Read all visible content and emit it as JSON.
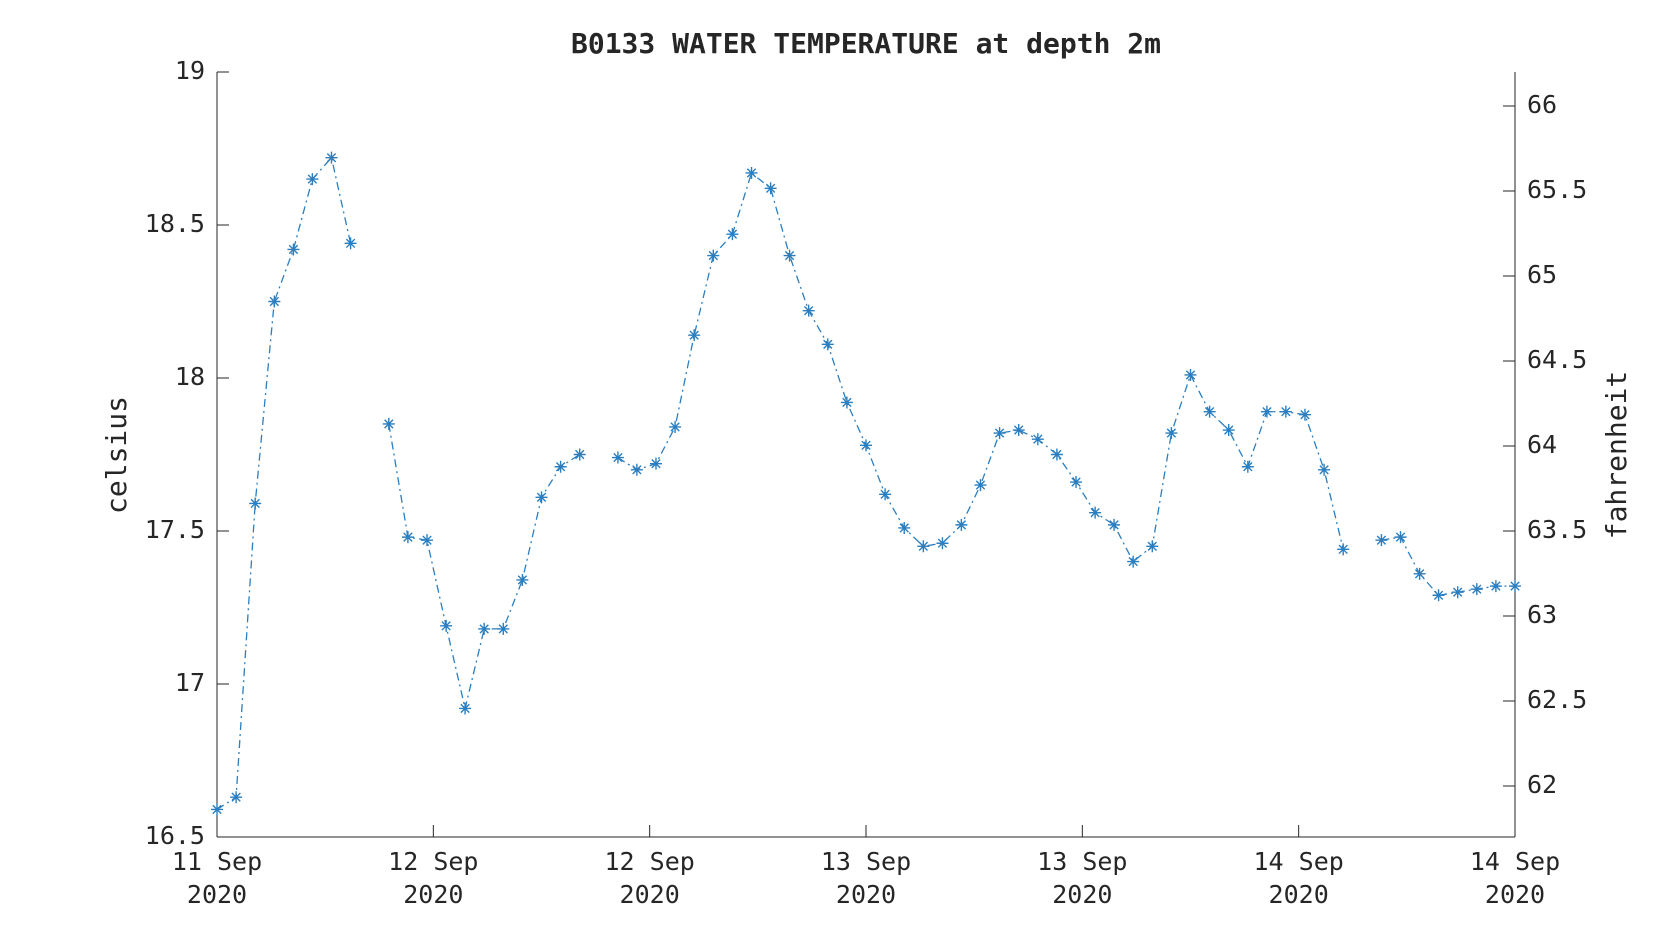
{
  "chart_data": {
    "type": "line",
    "title": "B0133 WATER TEMPERATURE at depth 2m",
    "ylabel": "celsius",
    "y2label": "fahrenheit",
    "x": [
      0,
      1.06,
      2.12,
      3.18,
      4.24,
      5.29,
      6.35,
      7.41,
      8.47,
      9.53,
      10.59,
      11.65,
      12.71,
      13.76,
      14.82,
      15.88,
      16.94,
      18.0,
      19.06,
      20.12,
      21.18,
      22.24,
      23.29,
      24.35,
      25.41,
      26.47,
      27.53,
      28.59,
      29.65,
      30.71,
      31.76,
      32.82,
      33.88,
      34.94,
      36.0,
      37.06,
      38.12,
      39.18,
      40.24,
      41.29,
      42.35,
      43.41,
      44.47,
      45.53,
      46.59,
      47.65,
      48.71,
      49.76,
      50.82,
      51.88,
      52.94,
      54.0,
      55.06,
      56.12,
      57.18,
      58.24,
      59.29,
      60.35,
      61.41,
      62.47,
      63.53,
      64.59,
      65.65,
      66.71,
      67.76,
      68.82,
      69.88,
      70.94,
      72.0
    ],
    "series": [
      {
        "color": "#2b7fc0",
        "values": [
          16.59,
          16.63,
          17.59,
          18.25,
          18.42,
          18.65,
          18.72,
          18.44,
          null,
          17.85,
          17.48,
          17.47,
          17.19,
          16.92,
          17.18,
          17.18,
          17.34,
          17.61,
          17.71,
          17.75,
          null,
          17.74,
          17.7,
          17.72,
          17.84,
          18.14,
          18.4,
          18.47,
          18.67,
          18.62,
          18.4,
          18.22,
          18.11,
          17.92,
          17.78,
          17.62,
          17.51,
          17.45,
          17.46,
          17.52,
          17.65,
          17.82,
          17.83,
          17.8,
          17.75,
          17.66,
          17.56,
          17.52,
          17.4,
          17.45,
          17.82,
          18.01,
          17.89,
          17.83,
          17.71,
          17.89,
          17.89,
          17.88,
          17.7,
          17.44,
          null,
          17.47,
          17.48,
          17.36,
          17.29,
          17.3,
          17.31,
          17.32,
          17.32
        ]
      }
    ],
    "xlim": [
      0,
      72
    ],
    "xticks": [
      {
        "value": 0,
        "label": "11 Sep 2020"
      },
      {
        "value": 12,
        "label": "12 Sep 2020"
      },
      {
        "value": 24,
        "label": "12 Sep 2020"
      },
      {
        "value": 36,
        "label": "13 Sep 2020"
      },
      {
        "value": 48,
        "label": "13 Sep 2020"
      },
      {
        "value": 60,
        "label": "14 Sep 2020"
      },
      {
        "value": 72,
        "label": "14 Sep 2020"
      }
    ],
    "ylim": [
      16.5,
      19
    ],
    "yticks": [
      16.5,
      17,
      17.5,
      18,
      18.5,
      19
    ],
    "y2lim": [
      61.7,
      66.2
    ],
    "y2ticks": [
      62,
      62.5,
      63,
      63.5,
      64,
      64.5,
      65,
      65.5,
      66
    ]
  }
}
